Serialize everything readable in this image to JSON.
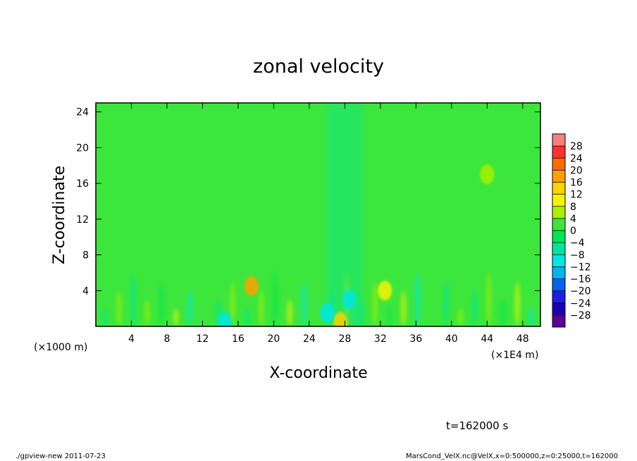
{
  "chart_data": {
    "type": "heatmap",
    "title": "zonal velocity",
    "xlabel": "X-coordinate",
    "ylabel": "Z-coordinate",
    "x_unit_label": "(×1E4 m)",
    "y_unit_label": "(×1000 m)",
    "xlim": [
      0,
      50
    ],
    "ylim": [
      0,
      25
    ],
    "x_ticks": [
      "4",
      "8",
      "12",
      "16",
      "20",
      "24",
      "28",
      "32",
      "36",
      "40",
      "44",
      "48"
    ],
    "y_ticks": [
      "4",
      "8",
      "12",
      "16",
      "20",
      "24"
    ],
    "colorbar": {
      "levels": [
        "28",
        "24",
        "20",
        "16",
        "12",
        "8",
        "4",
        "0",
        "−4",
        "−8",
        "−12",
        "−16",
        "−20",
        "−24",
        "−28"
      ],
      "range": [
        -30,
        30
      ],
      "colors": [
        "#f58080",
        "#ff3030",
        "#ff6a00",
        "#ffa000",
        "#ffd200",
        "#f5f500",
        "#aaf000",
        "#3ce63c",
        "#00e650",
        "#00e6a0",
        "#00e6e6",
        "#00b4f0",
        "#0064f0",
        "#1e1ee6",
        "#1e00b4",
        "#5a0096"
      ]
    },
    "field_description_values": {
      "background_velocity": 1,
      "max_positive": 18,
      "min_negative": -10
    },
    "features": [
      {
        "x": 17.5,
        "z": 4.5,
        "value": 18
      },
      {
        "x": 32.5,
        "z": 4.0,
        "value": 10
      },
      {
        "x": 27.5,
        "z": 0.5,
        "value": 12
      },
      {
        "x": 14.5,
        "z": 0.5,
        "value": -10
      },
      {
        "x": 28.5,
        "z": 3.0,
        "value": -8
      },
      {
        "x": 26.0,
        "z": 1.5,
        "value": -9
      },
      {
        "x": 44.0,
        "z": 17.0,
        "value": 5
      }
    ]
  },
  "annotations": {
    "time": "t=162000 s",
    "footer_left": "./gpview-new  2011-07-23",
    "footer_right": "MarsCond_VelX.nc@VelX,x=0:500000,z=0:25000,t=162000"
  }
}
